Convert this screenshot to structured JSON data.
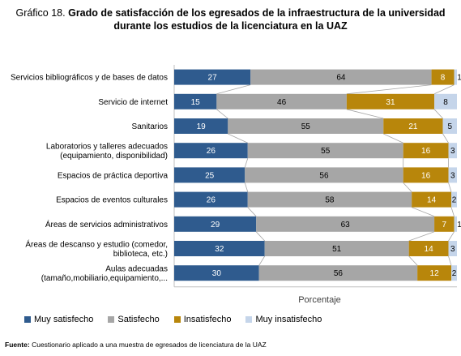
{
  "title_lead": "Gráfico 18.",
  "title_rest": "Grado de satisfacción de los egresados de la infraestructura de la universidad durante los estudios de la licenciatura en la UAZ",
  "source_label": "Fuente:",
  "source_text": "Cuestionario aplicado a una muestra de egresados de licenciatura de la UAZ",
  "chart_data": {
    "type": "bar",
    "orientation": "horizontal",
    "stacked": "percent",
    "xlabel": "Porcentaje",
    "xlim": [
      0,
      100
    ],
    "grid": false,
    "legend_position": "bottom",
    "categories": [
      [
        "Servicios bibliográficos y de bases de datos"
      ],
      [
        "Servicio de internet"
      ],
      [
        "Sanitarios"
      ],
      [
        "Laboratorios y talleres adecuados",
        "(equipamiento, disponibilidad)"
      ],
      [
        "Espacios de práctica deportiva"
      ],
      [
        "Espacios de eventos culturales"
      ],
      [
        "Áreas de servicios administrativos"
      ],
      [
        "Áreas de descanso y estudio (comedor,",
        "biblioteca, etc.)"
      ],
      [
        "Aulas adecuadas",
        "(tamaño,mobiliario,equipamiento,..."
      ]
    ],
    "series": [
      {
        "name": "Muy satisfecho",
        "color": "#2f5b8e",
        "label_color": "#ffffff",
        "values": [
          27,
          15,
          19,
          26,
          25,
          26,
          29,
          32,
          30
        ]
      },
      {
        "name": "Satisfecho",
        "color": "#a6a6a6",
        "label_color": "#000000",
        "values": [
          64,
          46,
          55,
          55,
          56,
          58,
          63,
          51,
          56
        ]
      },
      {
        "name": "Insatisfecho",
        "color": "#b8860b",
        "label_color": "#ffffff",
        "values": [
          8,
          31,
          21,
          16,
          16,
          14,
          7,
          14,
          12
        ]
      },
      {
        "name": "Muy insatisfecho",
        "color": "#c5d5ea",
        "label_color": "#000000",
        "values": [
          1,
          8,
          5,
          3,
          3,
          2,
          1,
          3,
          2
        ]
      }
    ]
  }
}
